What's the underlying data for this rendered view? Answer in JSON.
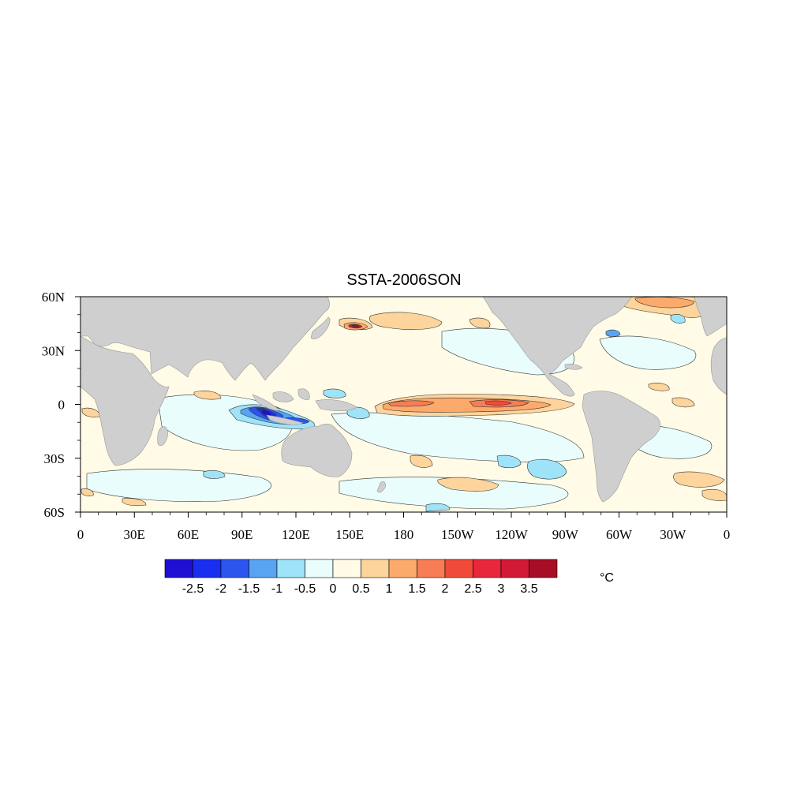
{
  "title": "SSTA-2006SON",
  "units": "°C",
  "axes": {
    "x_ticks": [
      "0",
      "30E",
      "60E",
      "90E",
      "120E",
      "150E",
      "180",
      "150W",
      "120W",
      "90W",
      "60W",
      "30W",
      "0"
    ],
    "y_ticks": [
      "60N",
      "30N",
      "0",
      "30S",
      "60S"
    ],
    "lon_range": [
      0,
      360
    ],
    "lat_range": [
      -60,
      60
    ]
  },
  "colorbar": {
    "labels": [
      "-2.5",
      "-2",
      "-1.5",
      "-1",
      "-0.5",
      "0",
      "0.5",
      "1",
      "1.5",
      "2",
      "2.5",
      "3",
      "3.5"
    ],
    "colors": [
      "#1e0fd2",
      "#1a2ef0",
      "#2c55f0",
      "#58a4f2",
      "#9fe3f9",
      "#e9fdfd",
      "#fffbe6",
      "#fdd49b",
      "#fcaa6c",
      "#f87c55",
      "#f24a3a",
      "#e8273a",
      "#d21a37",
      "#a80d25"
    ]
  },
  "colors": {
    "land": "#cfcfcf",
    "contour": "#333333"
  },
  "chart_data": {
    "type": "map",
    "field": "sea surface temperature anomaly",
    "title": "SSTA-2006SON",
    "units": "°C",
    "contour_levels": [
      -2.5,
      -2,
      -1.5,
      -1,
      -0.5,
      0,
      0.5,
      1,
      1.5,
      2,
      2.5,
      3,
      3.5
    ],
    "features": [
      {
        "lon": 205,
        "lat": 0,
        "value": 1.5
      },
      {
        "lon": 245,
        "lat": 0,
        "value": 2.0
      },
      {
        "lon": 107,
        "lat": -7,
        "value": -2.5
      },
      {
        "lon": 123,
        "lat": -10,
        "value": -2.0
      },
      {
        "lon": 152,
        "lat": 42,
        "value": 3.5
      },
      {
        "lon": 330,
        "lat": 55,
        "value": 1.5
      },
      {
        "lon": 300,
        "lat": 38,
        "value": -1.5
      },
      {
        "lon": 262,
        "lat": -35,
        "value": -1.0
      },
      {
        "lon": 230,
        "lat": -30,
        "value": -1.0
      },
      {
        "lon": 345,
        "lat": -40,
        "value": 1.5
      }
    ]
  }
}
